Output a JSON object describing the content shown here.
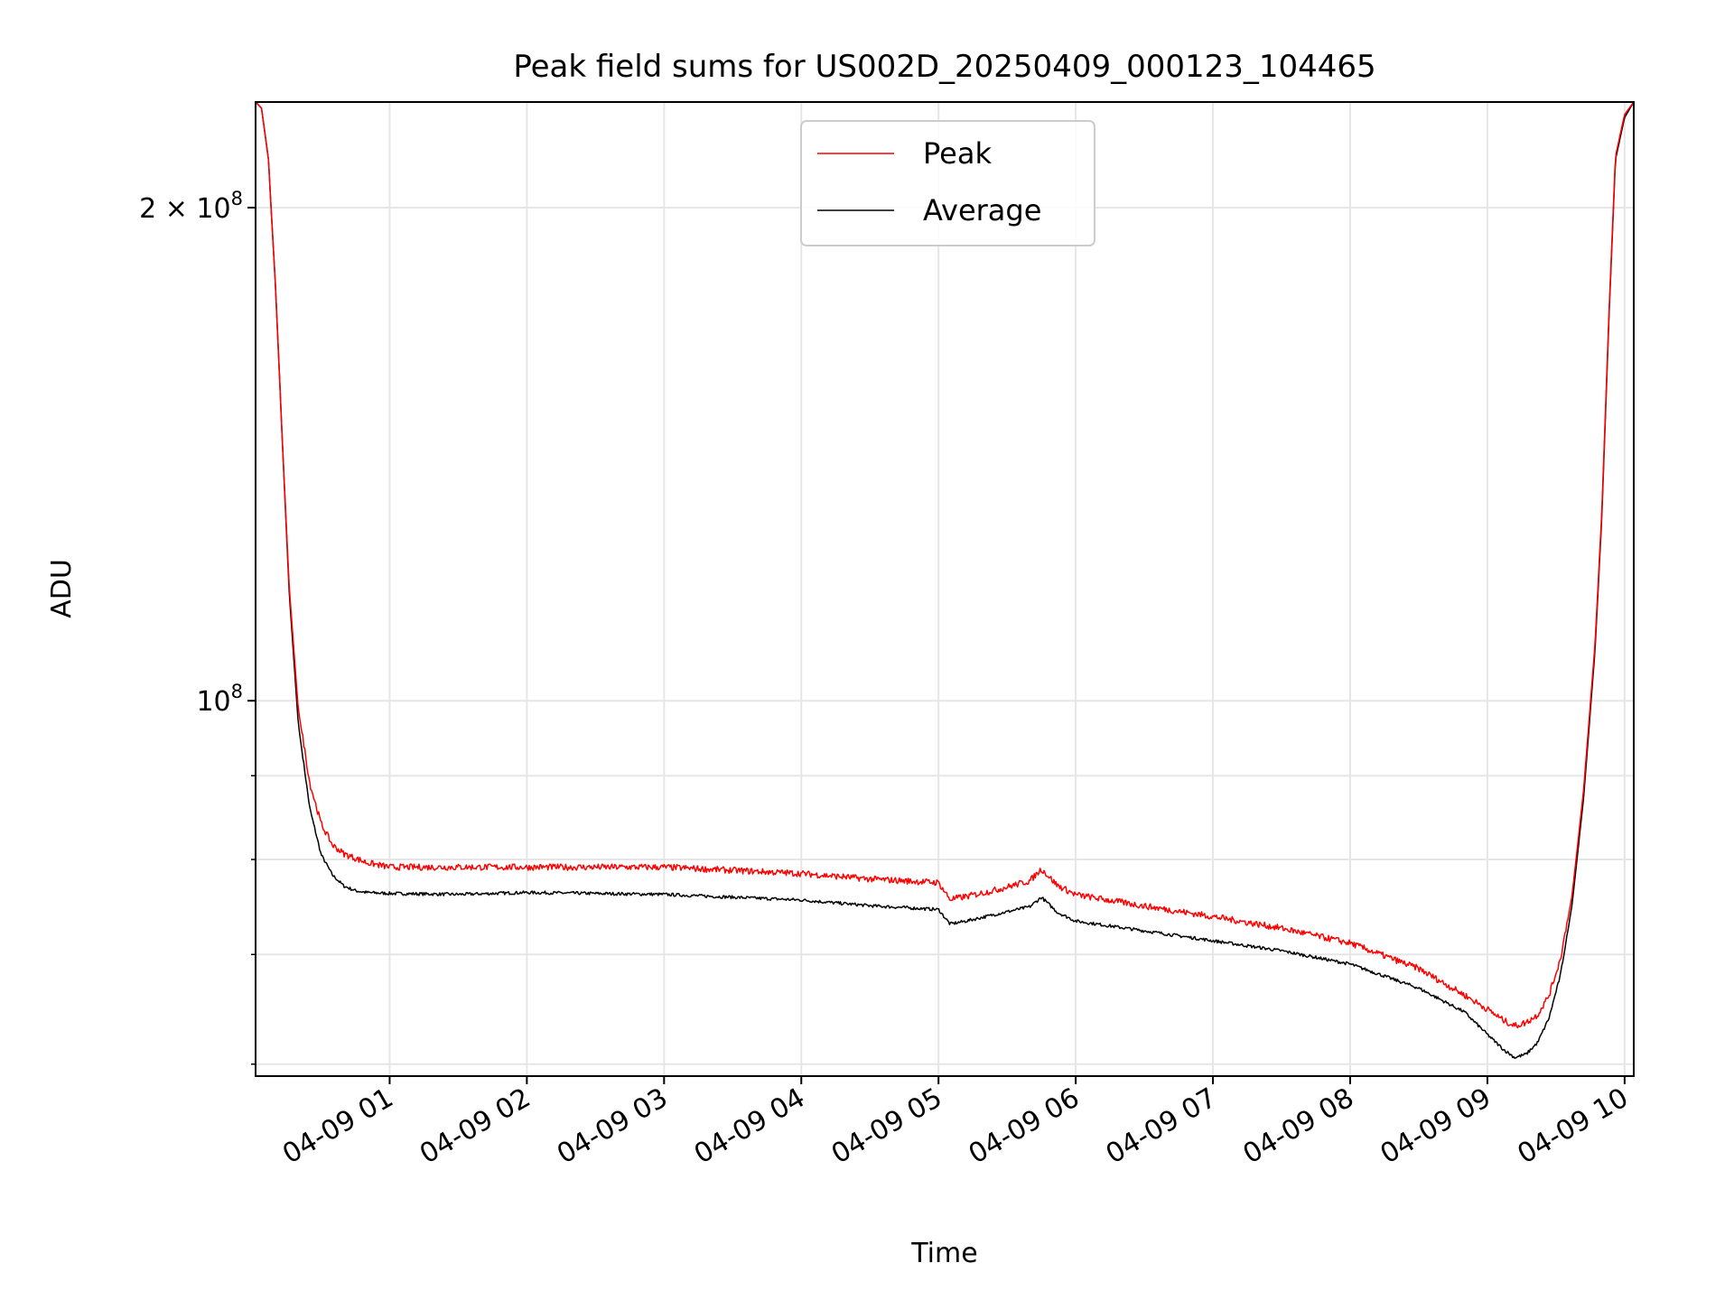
{
  "chart_data": {
    "type": "line",
    "title": "Peak field sums for US002D_20250409_000123_104465",
    "xlabel": "Time",
    "ylabel": "ADU",
    "y_scale": "log",
    "x_ticks": [
      "04-09 01",
      "04-09 02",
      "04-09 03",
      "04-09 04",
      "04-09 05",
      "04-09 06",
      "04-09 07",
      "04-09 08",
      "04-09 09",
      "04-09 10"
    ],
    "y_ticks": [
      {
        "value": 200000000,
        "base": "2 × 10",
        "exp": "8"
      },
      {
        "value": 100000000,
        "base": "10",
        "exp": "8"
      }
    ],
    "y_minor_ticks": [
      60000000,
      70000000,
      80000000,
      90000000
    ],
    "xlim": [
      "2025-04-09 00:01:23",
      "2025-04-09 10:04:00"
    ],
    "ylim": [
      59000000,
      232000000
    ],
    "grid": true,
    "legend_position": "top-center",
    "series": [
      {
        "name": "Peak",
        "color": "#ff0000",
        "x": [
          "2025-04-09 00:01:23",
          "2025-04-09 00:04:00",
          "2025-04-09 00:07:00",
          "2025-04-09 00:10:00",
          "2025-04-09 00:13:00",
          "2025-04-09 00:16:00",
          "2025-04-09 00:20:00",
          "2025-04-09 00:25:00",
          "2025-04-09 00:30:00",
          "2025-04-09 00:35:00",
          "2025-04-09 00:40:00",
          "2025-04-09 00:45:00",
          "2025-04-09 00:50:00",
          "2025-04-09 01:00:00",
          "2025-04-09 01:30:00",
          "2025-04-09 02:00:00",
          "2025-04-09 03:00:00",
          "2025-04-09 04:00:00",
          "2025-04-09 04:30:00",
          "2025-04-09 05:00:00",
          "2025-04-09 05:05:00",
          "2025-04-09 05:12:00",
          "2025-04-09 05:25:00",
          "2025-04-09 05:40:00",
          "2025-04-09 05:45:00",
          "2025-04-09 05:52:00",
          "2025-04-09 06:00:00",
          "2025-04-09 06:30:00",
          "2025-04-09 07:00:00",
          "2025-04-09 07:30:00",
          "2025-04-09 08:00:00",
          "2025-04-09 08:30:00",
          "2025-04-09 08:50:00",
          "2025-04-09 09:00:00",
          "2025-04-09 09:07:00",
          "2025-04-09 09:12:00",
          "2025-04-09 09:17:00",
          "2025-04-09 09:22:00",
          "2025-04-09 09:27:00",
          "2025-04-09 09:32:00",
          "2025-04-09 09:37:00",
          "2025-04-09 09:42:00",
          "2025-04-09 09:47:00",
          "2025-04-09 09:50:00",
          "2025-04-09 09:53:00",
          "2025-04-09 09:56:00",
          "2025-04-09 10:00:00",
          "2025-04-09 10:04:00"
        ],
        "y": [
          232000000,
          230000000,
          214000000,
          180000000,
          145000000,
          118000000,
          99000000,
          89000000,
          84000000,
          81500000,
          80500000,
          80000000,
          79500000,
          79000000,
          79000000,
          79000000,
          79000000,
          78300000,
          77700000,
          77300000,
          75500000,
          75800000,
          76500000,
          77500000,
          78800000,
          77000000,
          76000000,
          74800000,
          73700000,
          72500000,
          71000000,
          68500000,
          66000000,
          64700000,
          63700000,
          63200000,
          63500000,
          64200000,
          66000000,
          69500000,
          76000000,
          88000000,
          108000000,
          130000000,
          170000000,
          215000000,
          228000000,
          232000000
        ]
      },
      {
        "name": "Average",
        "color": "#000000",
        "x": [
          "2025-04-09 00:01:23",
          "2025-04-09 00:04:00",
          "2025-04-09 00:07:00",
          "2025-04-09 00:10:00",
          "2025-04-09 00:13:00",
          "2025-04-09 00:16:00",
          "2025-04-09 00:20:00",
          "2025-04-09 00:25:00",
          "2025-04-09 00:30:00",
          "2025-04-09 00:35:00",
          "2025-04-09 00:40:00",
          "2025-04-09 00:45:00",
          "2025-04-09 00:50:00",
          "2025-04-09 01:00:00",
          "2025-04-09 01:30:00",
          "2025-04-09 02:00:00",
          "2025-04-09 03:00:00",
          "2025-04-09 04:00:00",
          "2025-04-09 04:30:00",
          "2025-04-09 05:00:00",
          "2025-04-09 05:05:00",
          "2025-04-09 05:12:00",
          "2025-04-09 05:25:00",
          "2025-04-09 05:40:00",
          "2025-04-09 05:45:00",
          "2025-04-09 05:52:00",
          "2025-04-09 06:00:00",
          "2025-04-09 06:30:00",
          "2025-04-09 07:00:00",
          "2025-04-09 07:30:00",
          "2025-04-09 08:00:00",
          "2025-04-09 08:30:00",
          "2025-04-09 08:50:00",
          "2025-04-09 09:00:00",
          "2025-04-09 09:07:00",
          "2025-04-09 09:12:00",
          "2025-04-09 09:17:00",
          "2025-04-09 09:22:00",
          "2025-04-09 09:27:00",
          "2025-04-09 09:32:00",
          "2025-04-09 09:37:00",
          "2025-04-09 09:42:00",
          "2025-04-09 09:47:00",
          "2025-04-09 09:50:00",
          "2025-04-09 09:53:00",
          "2025-04-09 09:56:00",
          "2025-04-09 10:00:00",
          "2025-04-09 10:04:00"
        ],
        "y": [
          232000000,
          230000000,
          214000000,
          180000000,
          145000000,
          117000000,
          97000000,
          86000000,
          80500000,
          78200000,
          77000000,
          76500000,
          76300000,
          76200000,
          76100000,
          76300000,
          76100000,
          75500000,
          74900000,
          74500000,
          73000000,
          73300000,
          74000000,
          74800000,
          75800000,
          74200000,
          73300000,
          72300000,
          71300000,
          70300000,
          69000000,
          66700000,
          64500000,
          62500000,
          61200000,
          60500000,
          60800000,
          61800000,
          64000000,
          68000000,
          75000000,
          87000000,
          107000000,
          129000000,
          169000000,
          214000000,
          227000000,
          232000000
        ]
      }
    ]
  }
}
